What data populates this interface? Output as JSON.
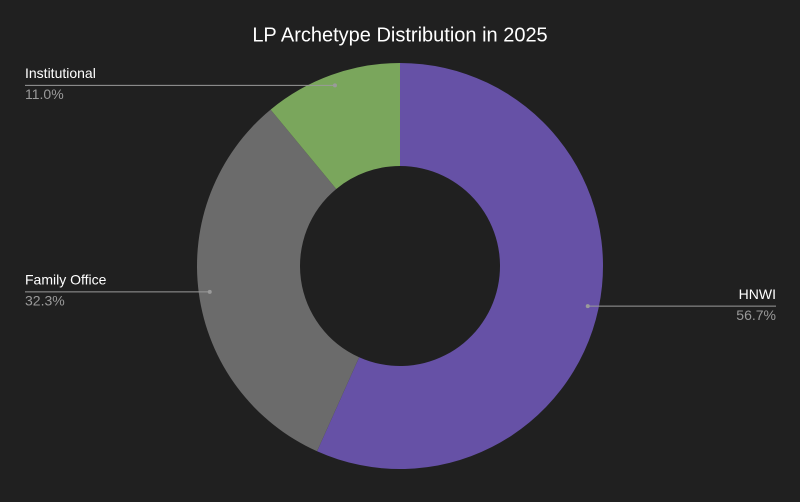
{
  "chart_data": {
    "type": "donut",
    "title": "LP Archetype Distribution in 2025",
    "categories": [
      "HNWI",
      "Family Office",
      "Institutional"
    ],
    "values": [
      56.7,
      32.3,
      11.0
    ],
    "value_labels": [
      "56.7%",
      "32.3%",
      "11.0%"
    ],
    "colors": [
      "#6651a6",
      "#6b6b6b",
      "#7aa65c"
    ]
  }
}
